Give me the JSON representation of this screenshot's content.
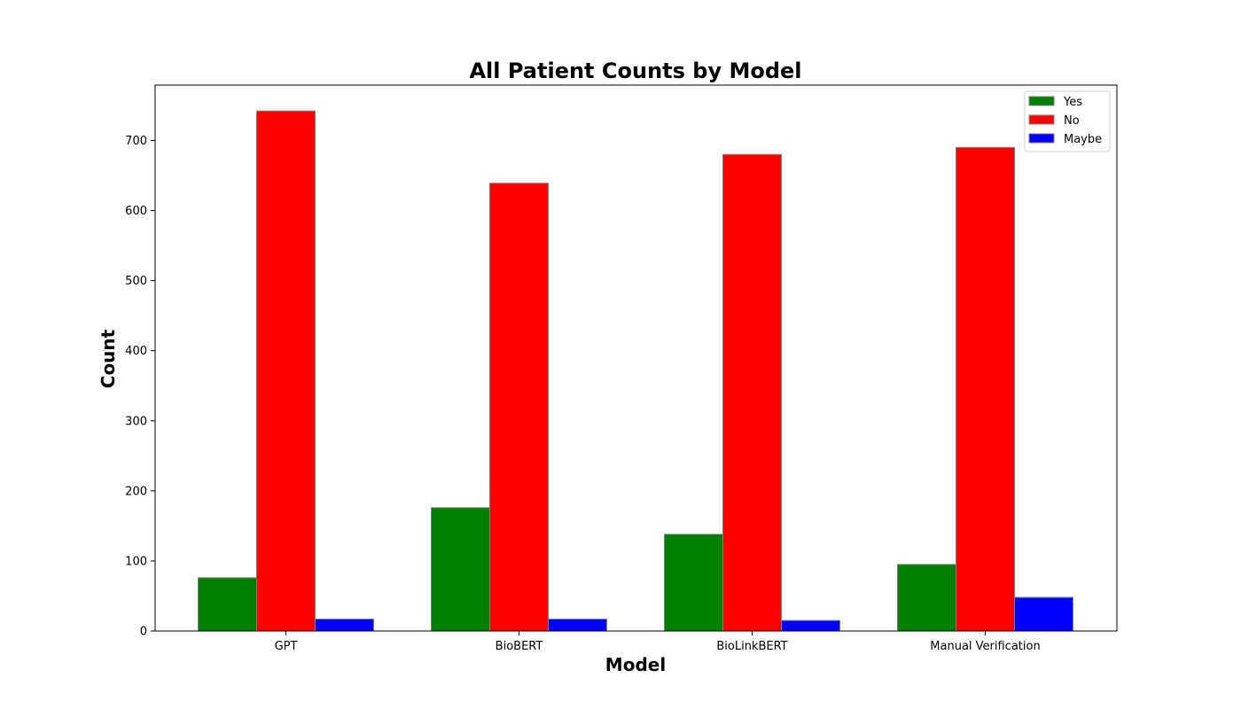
{
  "chart_data": {
    "type": "bar",
    "title": "All Patient Counts by Model",
    "xlabel": "Model",
    "ylabel": "Count",
    "categories": [
      "GPT",
      "BioBERT",
      "BioLinkBERT",
      "Manual Verification"
    ],
    "series": [
      {
        "name": "Yes",
        "color": "#008000",
        "values": [
          76,
          176,
          138,
          95
        ]
      },
      {
        "name": "No",
        "color": "#ff0000",
        "values": [
          742,
          639,
          680,
          690
        ]
      },
      {
        "name": "Maybe",
        "color": "#0000ff",
        "values": [
          17,
          17,
          15,
          48
        ]
      }
    ],
    "ylim": [
      0,
      779
    ],
    "yticks": [
      0,
      100,
      200,
      300,
      400,
      500,
      600,
      700
    ],
    "grid": false,
    "legend_position": "top-right",
    "bar_edge_color": "#808080"
  }
}
